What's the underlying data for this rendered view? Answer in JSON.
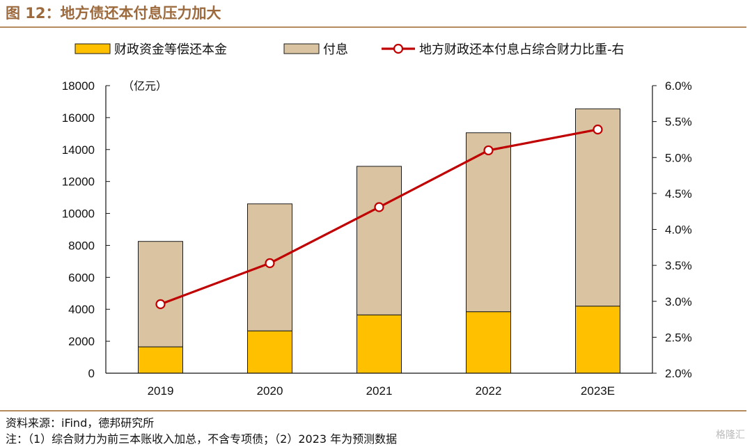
{
  "figure": {
    "title": "图 12：地方债还本付息压力加大",
    "source": "资料来源：iFind，德邦研究所",
    "note": "注：（1）综合财力为前三本账收入加总，不含专项债；（2）2023 年为预测数据",
    "watermark": "格隆汇"
  },
  "chart_data": {
    "type": "bar",
    "stacked": true,
    "categories": [
      "2019",
      "2020",
      "2021",
      "2022",
      "2023E"
    ],
    "y_unit": "（亿元）",
    "ylim": [
      0,
      18000
    ],
    "yticks": [
      0,
      2000,
      4000,
      6000,
      8000,
      10000,
      12000,
      14000,
      16000,
      18000
    ],
    "y2lim": [
      2.0,
      6.0
    ],
    "y2ticks": [
      "2.0%",
      "2.5%",
      "3.0%",
      "3.5%",
      "4.0%",
      "4.5%",
      "5.0%",
      "5.5%",
      "6.0%"
    ],
    "legend_position": "top",
    "grid": false,
    "series": [
      {
        "name": "财政资金等偿还本金",
        "type": "bar",
        "color": "#FFC000",
        "values": [
          1650,
          2650,
          3650,
          3850,
          4200
        ]
      },
      {
        "name": "付息",
        "type": "bar",
        "color": "#D9C3A0",
        "values": [
          6600,
          7950,
          9300,
          11200,
          12350
        ]
      },
      {
        "name": "地方财政还本付息占综合财力比重-右",
        "type": "line",
        "axis": "right",
        "color": "#C00000",
        "values": [
          2.96,
          3.53,
          4.31,
          5.1,
          5.39
        ]
      }
    ]
  }
}
